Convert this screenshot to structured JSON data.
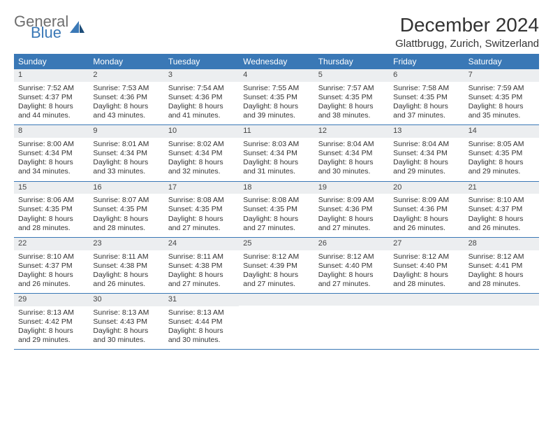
{
  "logo": {
    "general": "General",
    "blue": "Blue"
  },
  "title": "December 2024",
  "location": "Glattbrugg, Zurich, Switzerland",
  "day_names": [
    "Sunday",
    "Monday",
    "Tuesday",
    "Wednesday",
    "Thursday",
    "Friday",
    "Saturday"
  ],
  "colors": {
    "header_bg": "#3a78b6",
    "daynum_bg": "#eceef0",
    "rule": "#3a78b6",
    "text": "#333333"
  },
  "weeks": [
    [
      {
        "n": "1",
        "sr": "Sunrise: 7:52 AM",
        "ss": "Sunset: 4:37 PM",
        "d1": "Daylight: 8 hours",
        "d2": "and 44 minutes."
      },
      {
        "n": "2",
        "sr": "Sunrise: 7:53 AM",
        "ss": "Sunset: 4:36 PM",
        "d1": "Daylight: 8 hours",
        "d2": "and 43 minutes."
      },
      {
        "n": "3",
        "sr": "Sunrise: 7:54 AM",
        "ss": "Sunset: 4:36 PM",
        "d1": "Daylight: 8 hours",
        "d2": "and 41 minutes."
      },
      {
        "n": "4",
        "sr": "Sunrise: 7:55 AM",
        "ss": "Sunset: 4:35 PM",
        "d1": "Daylight: 8 hours",
        "d2": "and 39 minutes."
      },
      {
        "n": "5",
        "sr": "Sunrise: 7:57 AM",
        "ss": "Sunset: 4:35 PM",
        "d1": "Daylight: 8 hours",
        "d2": "and 38 minutes."
      },
      {
        "n": "6",
        "sr": "Sunrise: 7:58 AM",
        "ss": "Sunset: 4:35 PM",
        "d1": "Daylight: 8 hours",
        "d2": "and 37 minutes."
      },
      {
        "n": "7",
        "sr": "Sunrise: 7:59 AM",
        "ss": "Sunset: 4:35 PM",
        "d1": "Daylight: 8 hours",
        "d2": "and 35 minutes."
      }
    ],
    [
      {
        "n": "8",
        "sr": "Sunrise: 8:00 AM",
        "ss": "Sunset: 4:34 PM",
        "d1": "Daylight: 8 hours",
        "d2": "and 34 minutes."
      },
      {
        "n": "9",
        "sr": "Sunrise: 8:01 AM",
        "ss": "Sunset: 4:34 PM",
        "d1": "Daylight: 8 hours",
        "d2": "and 33 minutes."
      },
      {
        "n": "10",
        "sr": "Sunrise: 8:02 AM",
        "ss": "Sunset: 4:34 PM",
        "d1": "Daylight: 8 hours",
        "d2": "and 32 minutes."
      },
      {
        "n": "11",
        "sr": "Sunrise: 8:03 AM",
        "ss": "Sunset: 4:34 PM",
        "d1": "Daylight: 8 hours",
        "d2": "and 31 minutes."
      },
      {
        "n": "12",
        "sr": "Sunrise: 8:04 AM",
        "ss": "Sunset: 4:34 PM",
        "d1": "Daylight: 8 hours",
        "d2": "and 30 minutes."
      },
      {
        "n": "13",
        "sr": "Sunrise: 8:04 AM",
        "ss": "Sunset: 4:34 PM",
        "d1": "Daylight: 8 hours",
        "d2": "and 29 minutes."
      },
      {
        "n": "14",
        "sr": "Sunrise: 8:05 AM",
        "ss": "Sunset: 4:35 PM",
        "d1": "Daylight: 8 hours",
        "d2": "and 29 minutes."
      }
    ],
    [
      {
        "n": "15",
        "sr": "Sunrise: 8:06 AM",
        "ss": "Sunset: 4:35 PM",
        "d1": "Daylight: 8 hours",
        "d2": "and 28 minutes."
      },
      {
        "n": "16",
        "sr": "Sunrise: 8:07 AM",
        "ss": "Sunset: 4:35 PM",
        "d1": "Daylight: 8 hours",
        "d2": "and 28 minutes."
      },
      {
        "n": "17",
        "sr": "Sunrise: 8:08 AM",
        "ss": "Sunset: 4:35 PM",
        "d1": "Daylight: 8 hours",
        "d2": "and 27 minutes."
      },
      {
        "n": "18",
        "sr": "Sunrise: 8:08 AM",
        "ss": "Sunset: 4:35 PM",
        "d1": "Daylight: 8 hours",
        "d2": "and 27 minutes."
      },
      {
        "n": "19",
        "sr": "Sunrise: 8:09 AM",
        "ss": "Sunset: 4:36 PM",
        "d1": "Daylight: 8 hours",
        "d2": "and 27 minutes."
      },
      {
        "n": "20",
        "sr": "Sunrise: 8:09 AM",
        "ss": "Sunset: 4:36 PM",
        "d1": "Daylight: 8 hours",
        "d2": "and 26 minutes."
      },
      {
        "n": "21",
        "sr": "Sunrise: 8:10 AM",
        "ss": "Sunset: 4:37 PM",
        "d1": "Daylight: 8 hours",
        "d2": "and 26 minutes."
      }
    ],
    [
      {
        "n": "22",
        "sr": "Sunrise: 8:10 AM",
        "ss": "Sunset: 4:37 PM",
        "d1": "Daylight: 8 hours",
        "d2": "and 26 minutes."
      },
      {
        "n": "23",
        "sr": "Sunrise: 8:11 AM",
        "ss": "Sunset: 4:38 PM",
        "d1": "Daylight: 8 hours",
        "d2": "and 26 minutes."
      },
      {
        "n": "24",
        "sr": "Sunrise: 8:11 AM",
        "ss": "Sunset: 4:38 PM",
        "d1": "Daylight: 8 hours",
        "d2": "and 27 minutes."
      },
      {
        "n": "25",
        "sr": "Sunrise: 8:12 AM",
        "ss": "Sunset: 4:39 PM",
        "d1": "Daylight: 8 hours",
        "d2": "and 27 minutes."
      },
      {
        "n": "26",
        "sr": "Sunrise: 8:12 AM",
        "ss": "Sunset: 4:40 PM",
        "d1": "Daylight: 8 hours",
        "d2": "and 27 minutes."
      },
      {
        "n": "27",
        "sr": "Sunrise: 8:12 AM",
        "ss": "Sunset: 4:40 PM",
        "d1": "Daylight: 8 hours",
        "d2": "and 28 minutes."
      },
      {
        "n": "28",
        "sr": "Sunrise: 8:12 AM",
        "ss": "Sunset: 4:41 PM",
        "d1": "Daylight: 8 hours",
        "d2": "and 28 minutes."
      }
    ],
    [
      {
        "n": "29",
        "sr": "Sunrise: 8:13 AM",
        "ss": "Sunset: 4:42 PM",
        "d1": "Daylight: 8 hours",
        "d2": "and 29 minutes."
      },
      {
        "n": "30",
        "sr": "Sunrise: 8:13 AM",
        "ss": "Sunset: 4:43 PM",
        "d1": "Daylight: 8 hours",
        "d2": "and 30 minutes."
      },
      {
        "n": "31",
        "sr": "Sunrise: 8:13 AM",
        "ss": "Sunset: 4:44 PM",
        "d1": "Daylight: 8 hours",
        "d2": "and 30 minutes."
      },
      {
        "empty": true
      },
      {
        "empty": true
      },
      {
        "empty": true
      },
      {
        "empty": true
      }
    ]
  ]
}
